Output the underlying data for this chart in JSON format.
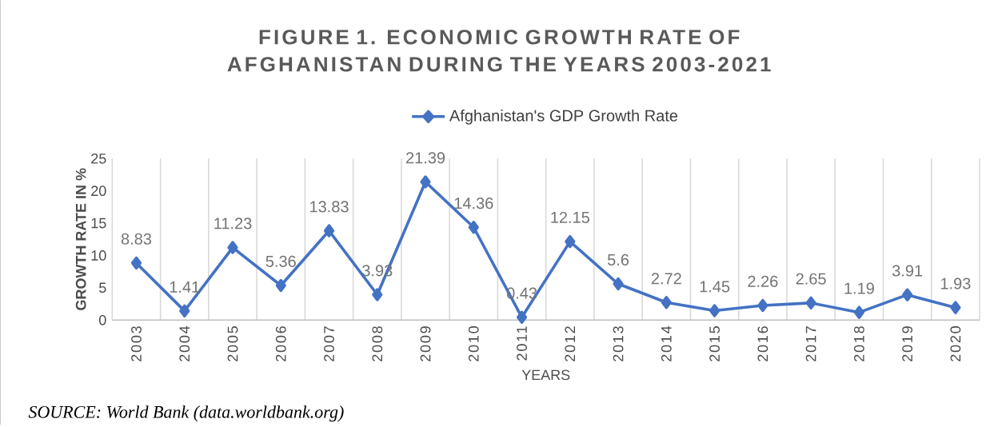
{
  "chart_data": {
    "type": "line",
    "title": "FIGURE 1.  ECONOMIC GROWTH RATE OF AFGHANISTAN DURING THE YEARS 2003-2021",
    "xlabel": "YEARS",
    "ylabel": "GROWTH RATE  IN %",
    "categories": [
      "2003",
      "2004",
      "2005",
      "2006",
      "2007",
      "2008",
      "2009",
      "2010",
      "2011",
      "2012",
      "2013",
      "2014",
      "2015",
      "2016",
      "2017",
      "2018",
      "2019",
      "2020"
    ],
    "series": [
      {
        "name": "Afghanistan's GDP Growth Rate",
        "color": "#4472c4",
        "values": [
          8.83,
          1.41,
          11.23,
          5.36,
          13.83,
          3.93,
          21.39,
          14.36,
          0.43,
          12.15,
          5.6,
          2.72,
          1.45,
          2.26,
          2.65,
          1.19,
          3.91,
          1.93
        ]
      }
    ],
    "ylim": [
      0,
      25
    ],
    "yticks": [
      0,
      5,
      10,
      15,
      20,
      25
    ],
    "data_labels": true,
    "grid": "x",
    "legend": "top",
    "marker": "diamond",
    "line_style": "solid",
    "annotations": [
      "SOURCE: World Bank (data.worldbank.org)"
    ]
  }
}
